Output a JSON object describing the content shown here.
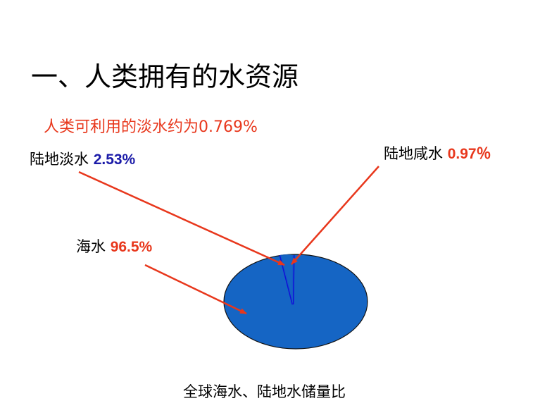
{
  "page": {
    "title": "一、人类拥有的水资源",
    "subtitle": "人类可利用的淡水约为0.769%",
    "caption": "全球海水、陆地水储量比"
  },
  "chart_data": {
    "type": "pie",
    "title": "全球海水、陆地水储量比",
    "slices": [
      {
        "label": "海水",
        "value_text": "96.5%",
        "value": 96.5,
        "color": "#1565c4",
        "label_color": "#e8371c"
      },
      {
        "label": "陆地淡水",
        "value_text": "2.53%",
        "value": 2.53,
        "color": "#1565c4",
        "label_color": "#1a1aa8"
      },
      {
        "label": "陆地咸水",
        "value_text": "0.97％",
        "value": 0.97,
        "color": "#1565c4",
        "label_color": "#e8371c"
      }
    ],
    "arrow_color": "#e8371c",
    "divider_color": "#1010d8"
  }
}
